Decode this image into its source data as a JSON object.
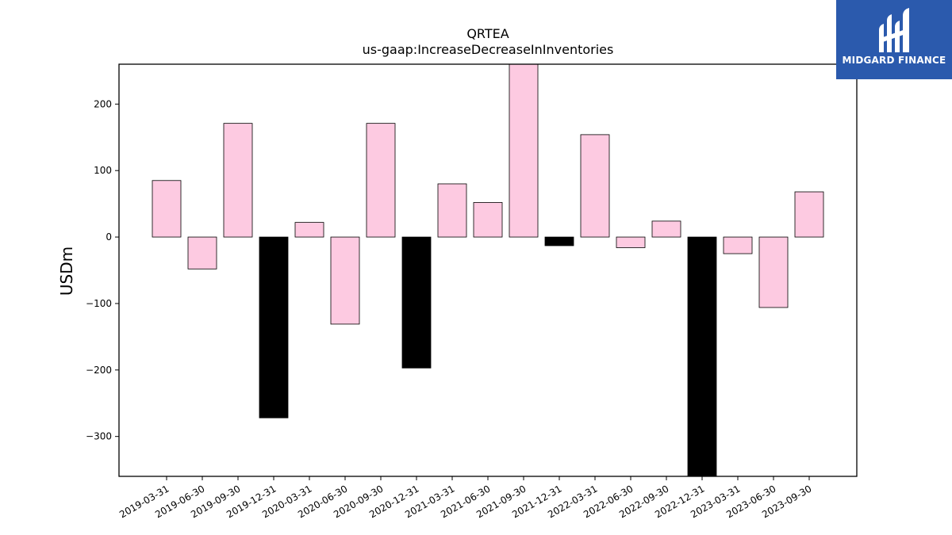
{
  "brand": {
    "name": "MIDGARD FINANCE",
    "bg_color": "#2b5aad",
    "icon": "midgard-logo-icon"
  },
  "chart_data": {
    "type": "bar",
    "title": "QRTEA",
    "subtitle": "us-gaap:IncreaseDecreaseInInventories",
    "xlabel": "",
    "ylabel": "USDm",
    "ylim": [
      -360,
      260
    ],
    "yticks": [
      200,
      100,
      0,
      -100,
      -200,
      -300
    ],
    "ytick_labels": [
      "200",
      "100",
      "0",
      "−100",
      "−200",
      "−300"
    ],
    "grid": false,
    "categories": [
      "2019-03-31",
      "2019-06-30",
      "2019-09-30",
      "2019-12-31",
      "2020-03-31",
      "2020-06-30",
      "2020-09-30",
      "2020-12-31",
      "2021-03-31",
      "2021-06-30",
      "2021-09-30",
      "2021-12-31",
      "2022-03-31",
      "2022-06-30",
      "2022-09-30",
      "2022-12-31",
      "2023-03-31",
      "2023-06-30",
      "2023-09-30"
    ],
    "values": [
      85,
      -48,
      171,
      -272,
      22,
      -131,
      171,
      -197,
      80,
      52,
      280,
      -13,
      154,
      -16,
      24,
      -380,
      -25,
      -106,
      68
    ],
    "bar_colors": [
      "#fdcae1",
      "#fdcae1",
      "#fdcae1",
      "#000000",
      "#fdcae1",
      "#fdcae1",
      "#fdcae1",
      "#000000",
      "#fdcae1",
      "#fdcae1",
      "#fdcae1",
      "#000000",
      "#fdcae1",
      "#fdcae1",
      "#fdcae1",
      "#000000",
      "#fdcae1",
      "#fdcae1",
      "#fdcae1"
    ],
    "edge_color": "#000000"
  }
}
